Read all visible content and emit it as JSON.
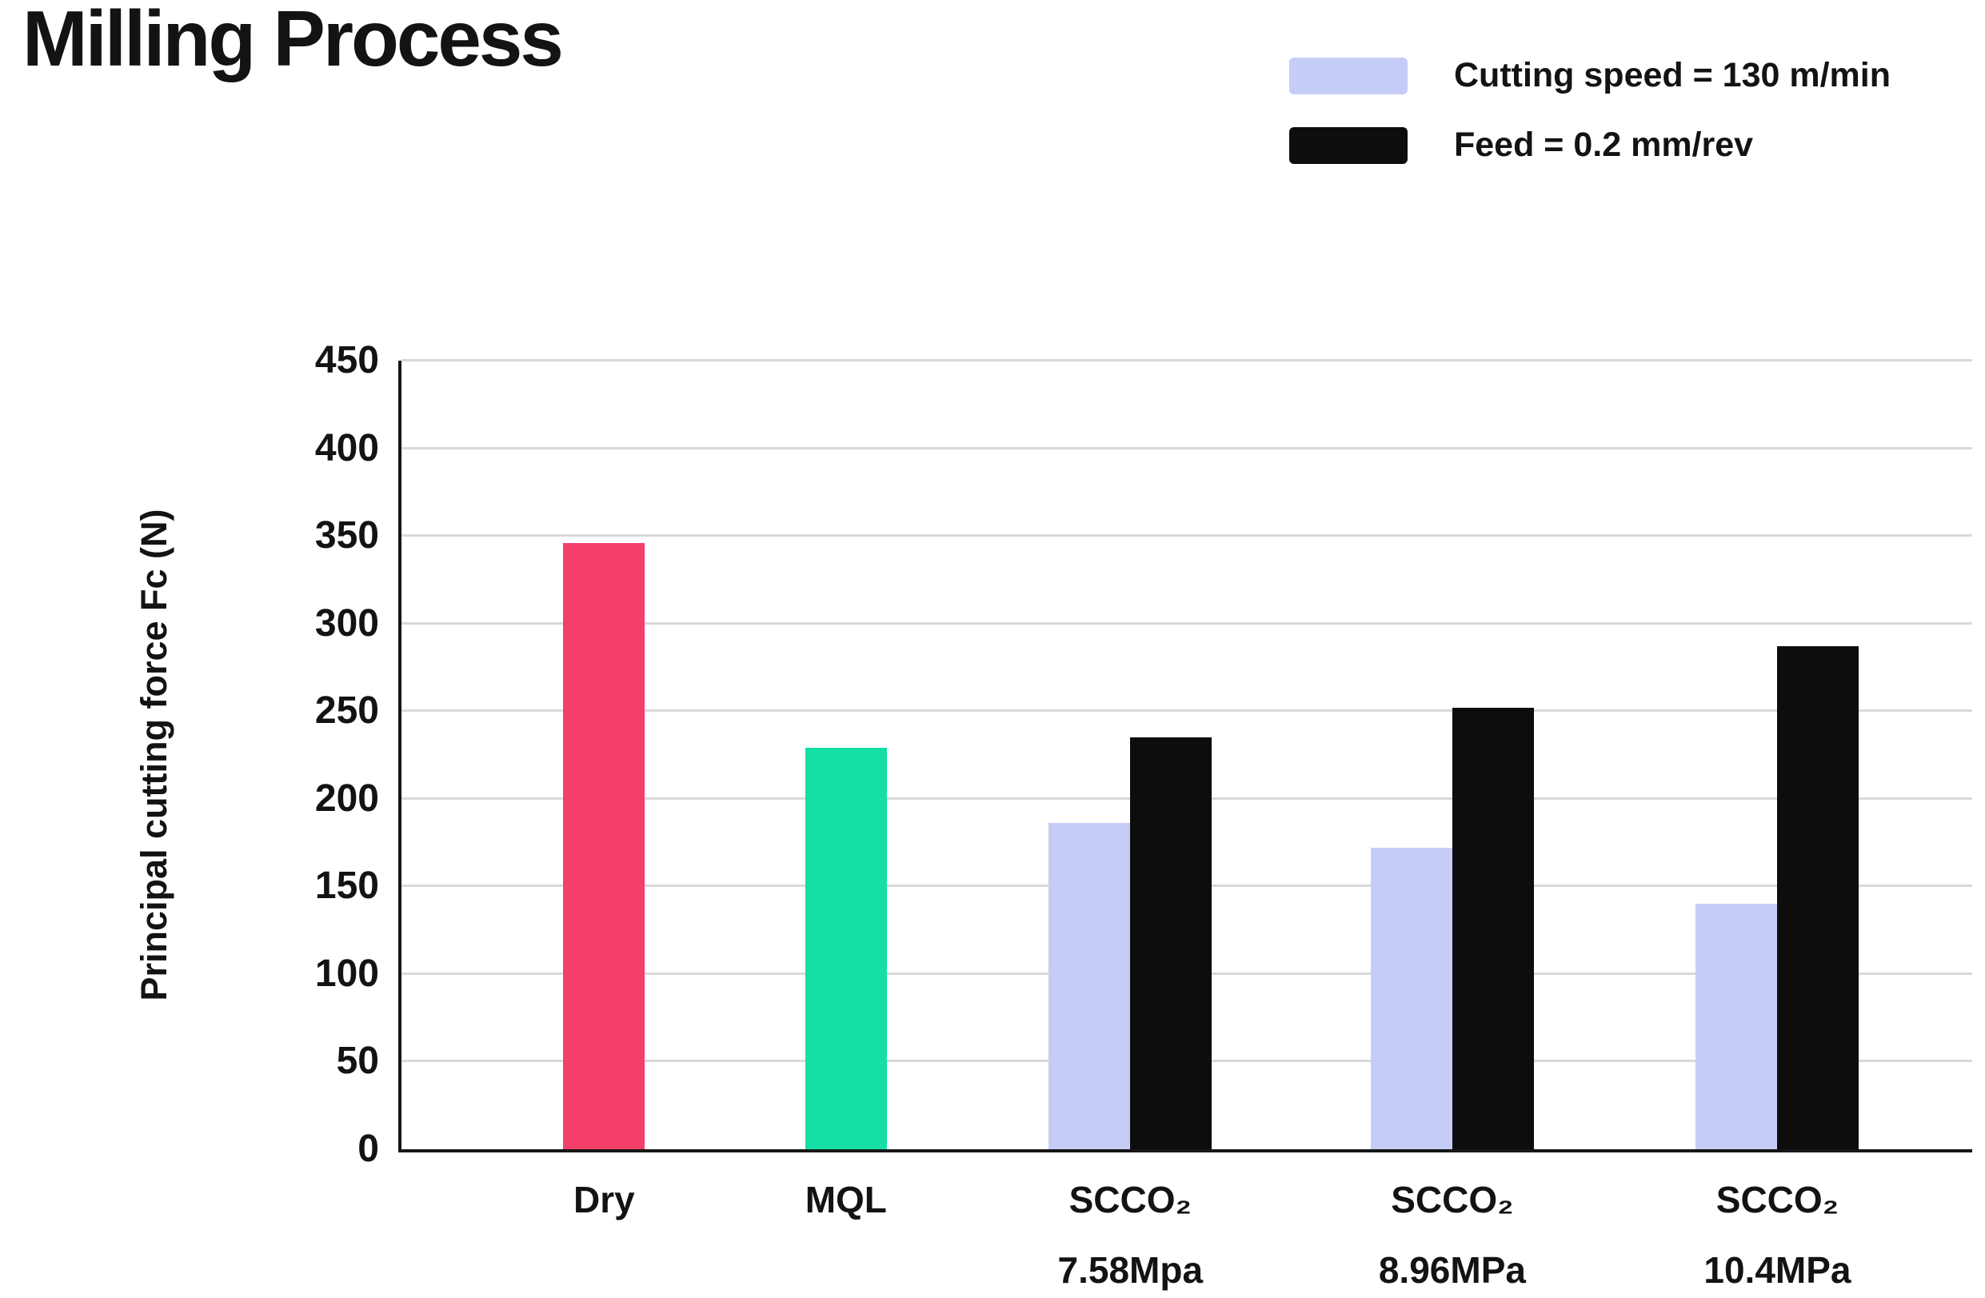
{
  "header": {
    "title": "Milling Process"
  },
  "legend": {
    "items": [
      {
        "label": "Cutting speed = 130 m/min",
        "color": "#C5CDF6"
      },
      {
        "label": "Feed = 0.2 mm/rev",
        "color": "#0D0D0D"
      }
    ]
  },
  "chart_data": {
    "type": "bar",
    "title": "Milling Process",
    "xlabel": "",
    "ylabel": "Principal cutting force Fc (N)",
    "ylim": [
      0,
      450
    ],
    "ytick_step": 50,
    "grid": true,
    "legend_position": "top-right",
    "categories": [
      "Dry",
      "MQL",
      "SCCO₂ 7.58Mpa",
      "SCCO₂ 8.96MPa",
      "SCCO₂ 10.4MPa"
    ],
    "series_colors": {
      "Dry": "#F43F6B",
      "MQL": "#14DFA5",
      "Cutting speed = 130 m/min": "#C5CDF6",
      "Feed = 0.2 mm/rev": "#0D0D0D"
    },
    "groups": [
      {
        "label_lines": [
          "Dry"
        ],
        "center_pct": 12.9,
        "bars": [
          {
            "series": "Dry",
            "value": 346,
            "color": "#F43F6B"
          }
        ]
      },
      {
        "label_lines": [
          "MQL"
        ],
        "center_pct": 28.3,
        "bars": [
          {
            "series": "MQL",
            "value": 229,
            "color": "#14DFA5"
          }
        ]
      },
      {
        "label_lines": [
          "SCCO₂",
          "7.58Mpa"
        ],
        "center_pct": 46.4,
        "bars": [
          {
            "series": "Cutting speed = 130 m/min",
            "value": 186,
            "color": "#C5CDF6"
          },
          {
            "series": "Feed = 0.2 mm/rev",
            "value": 235,
            "color": "#0D0D0D"
          }
        ]
      },
      {
        "label_lines": [
          "SCCO₂",
          "8.96MPa"
        ],
        "center_pct": 66.9,
        "bars": [
          {
            "series": "Cutting speed = 130 m/min",
            "value": 172,
            "color": "#C5CDF6"
          },
          {
            "series": "Feed = 0.2 mm/rev",
            "value": 252,
            "color": "#0D0D0D"
          }
        ]
      },
      {
        "label_lines": [
          "SCCO₂",
          "10.4MPa"
        ],
        "center_pct": 87.6,
        "bars": [
          {
            "series": "Cutting speed = 130 m/min",
            "value": 140,
            "color": "#C5CDF6"
          },
          {
            "series": "Feed = 0.2 mm/rev",
            "value": 287,
            "color": "#0D0D0D"
          }
        ]
      }
    ]
  }
}
